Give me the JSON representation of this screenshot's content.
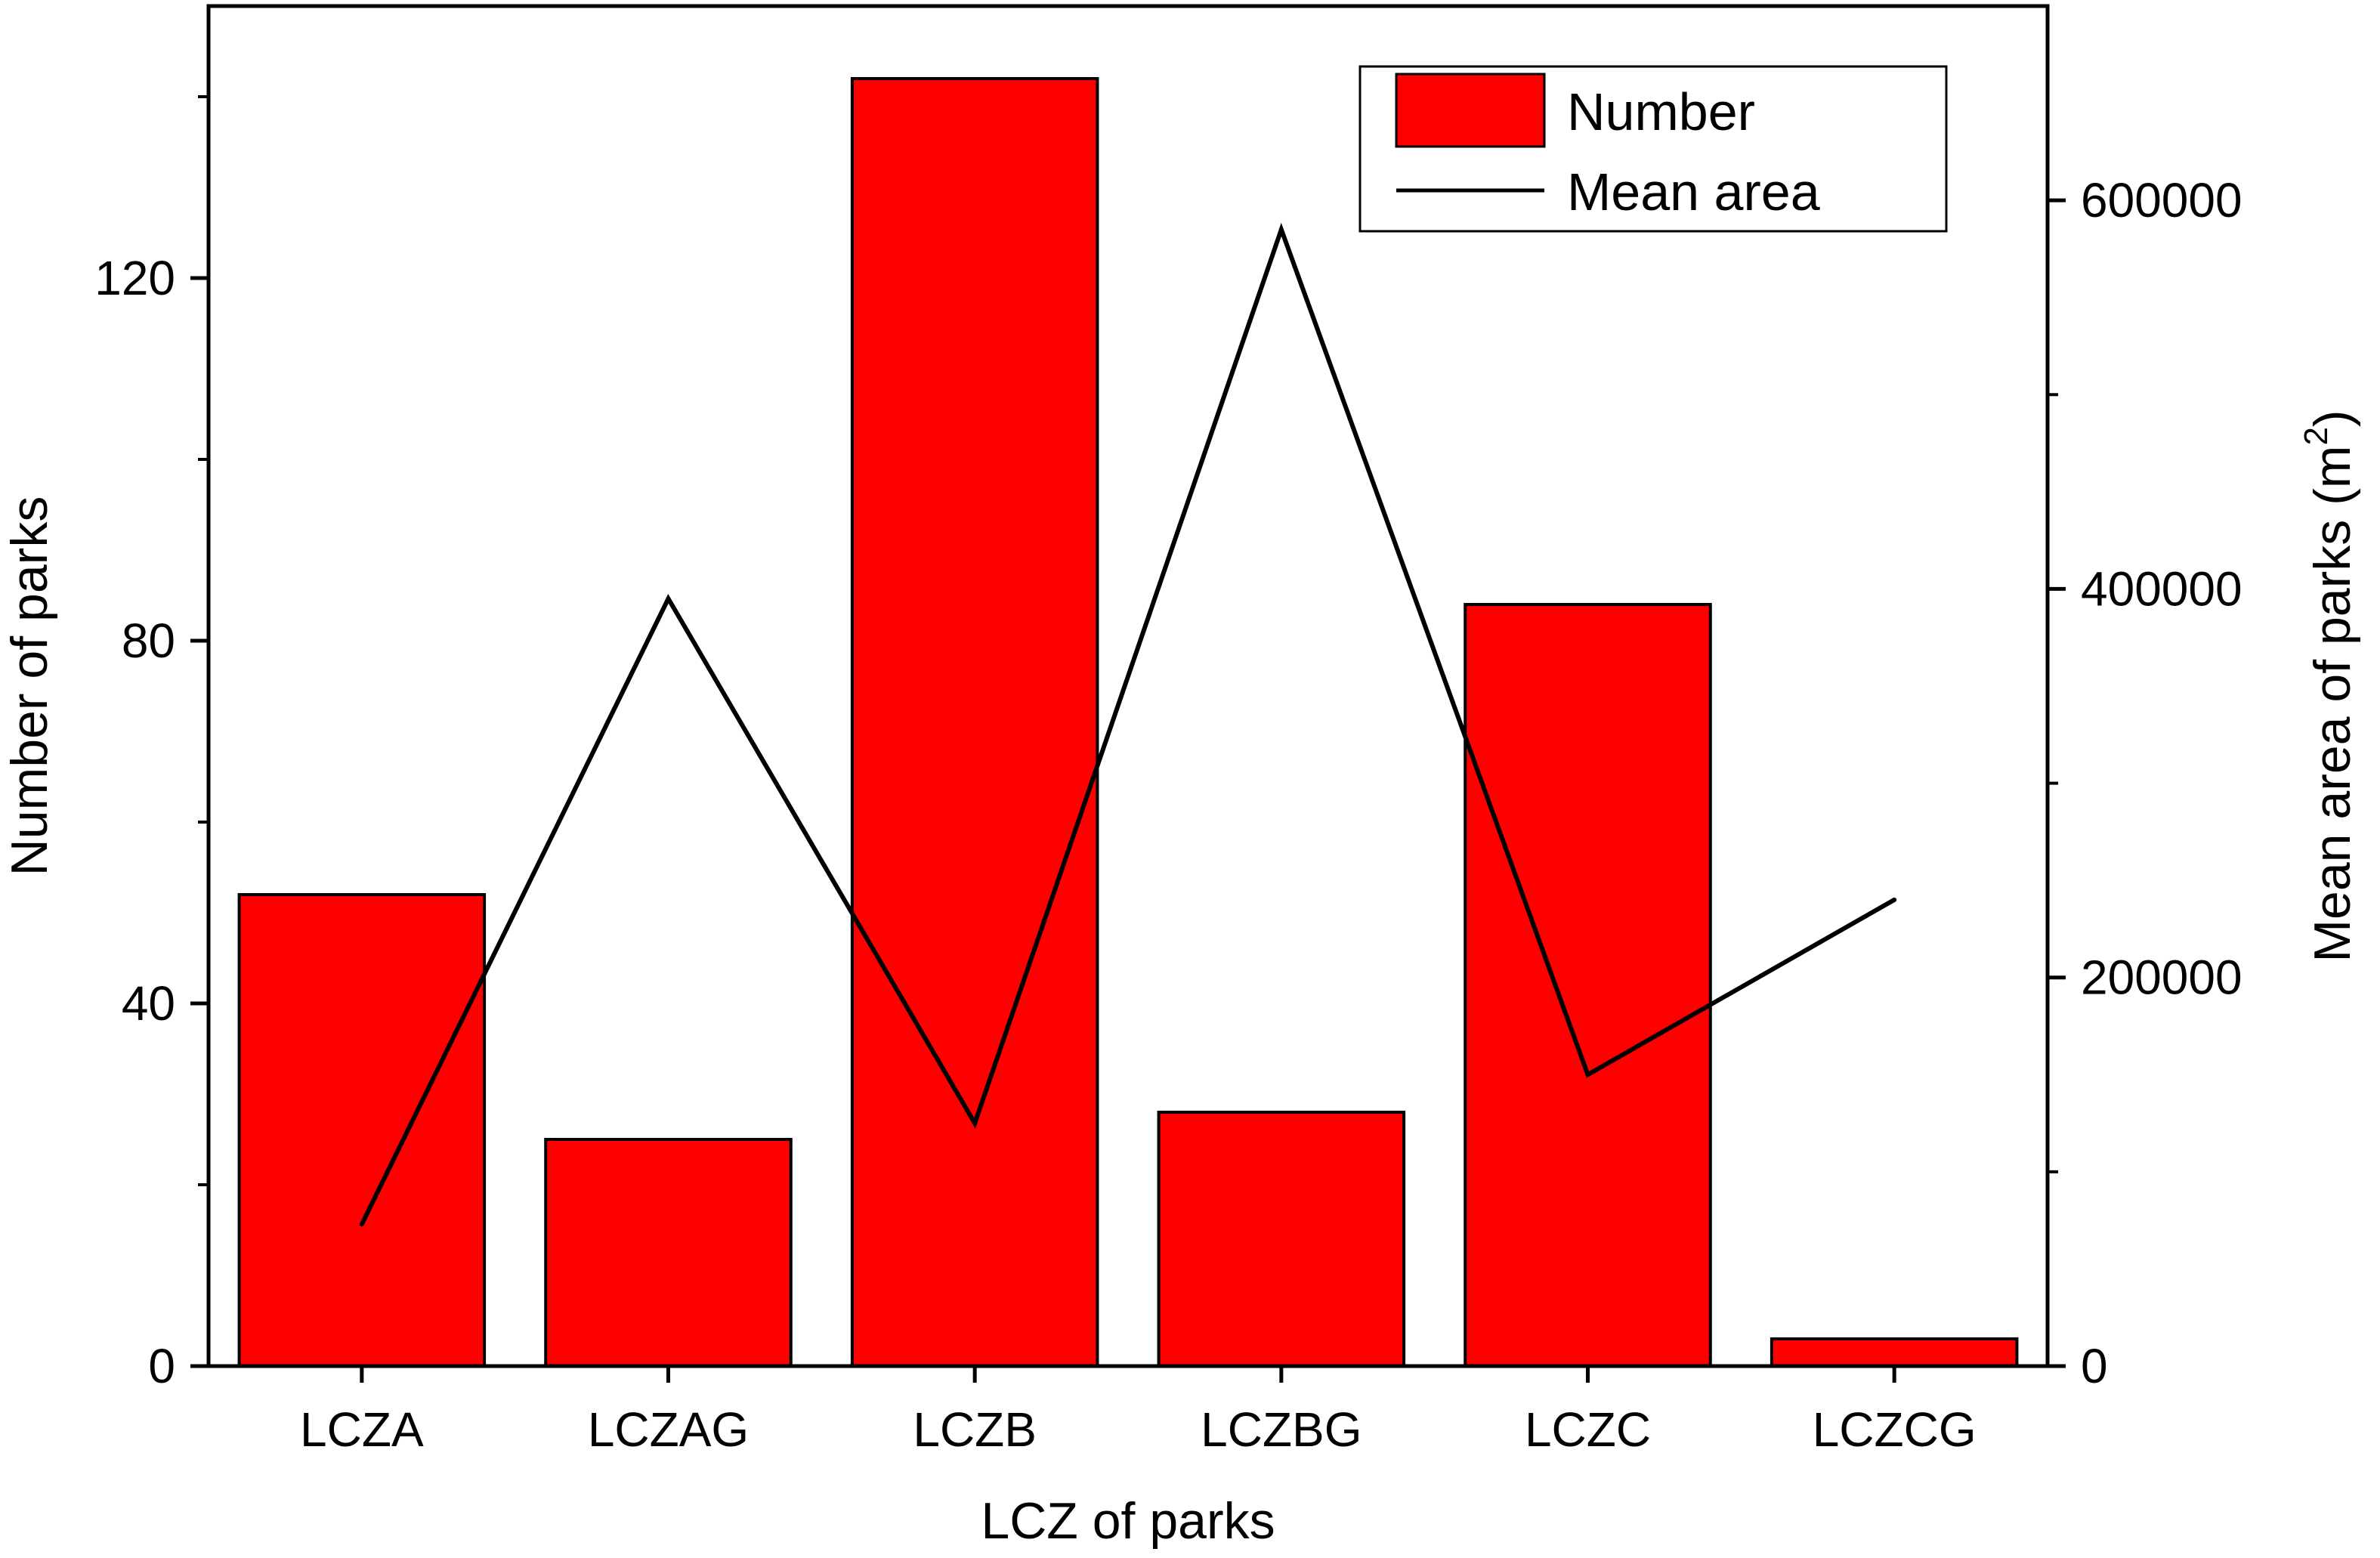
{
  "chart_data": {
    "type": "bar",
    "categories": [
      "LCZA",
      "LCZAG",
      "LCZB",
      "LCZBG",
      "LCZC",
      "LCZCG"
    ],
    "series": [
      {
        "name": "Number",
        "type": "bar",
        "axis": "left",
        "color": "#ff0000",
        "values": [
          52,
          25,
          142,
          28,
          84,
          3
        ]
      },
      {
        "name": "Mean area",
        "type": "line",
        "axis": "right",
        "color": "#000000",
        "values": [
          73000,
          395000,
          125000,
          585000,
          150000,
          240000
        ]
      }
    ],
    "xlabel": "LCZ of parks",
    "ylabel": "Number of parks",
    "y2label": "Mean area of parks (m",
    "y2label_sup": "2",
    "y2label_close": ")",
    "ylim": [
      0,
      150
    ],
    "y2lim": [
      0,
      700000
    ],
    "yticks": [
      {
        "value": 0,
        "label": "0"
      },
      {
        "value": 40,
        "label": "40"
      },
      {
        "value": 80,
        "label": "80"
      },
      {
        "value": 120,
        "label": "120"
      }
    ],
    "yminor": [
      20,
      60,
      100,
      140
    ],
    "y2ticks": [
      {
        "value": 0,
        "label": "0"
      },
      {
        "value": 200000,
        "label": "200000"
      },
      {
        "value": 400000,
        "label": "400000"
      },
      {
        "value": 600000,
        "label": "600000"
      }
    ],
    "y2minor": [
      100000,
      300000,
      500000
    ],
    "legend_position": "top-right",
    "grid": false
  }
}
